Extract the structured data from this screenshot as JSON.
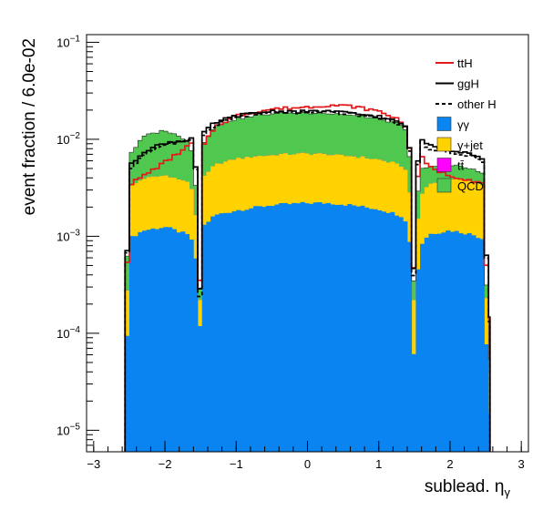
{
  "chart_data": {
    "type": "area",
    "stacked": true,
    "log_y": true,
    "xlabel": "sublead. η",
    "xlabel_sub": "γ",
    "ylabel": "event fraction / 6.0e-02",
    "xlim": [
      -3.1,
      3.1
    ],
    "ylim": [
      6e-06,
      0.12
    ],
    "x_ticks": [
      -3,
      -2,
      -1,
      0,
      1,
      2,
      3
    ],
    "x_tick_labels": [
      "−3",
      "−2",
      "−1",
      "0",
      "1",
      "2",
      "3"
    ],
    "y_ticks": [
      1e-05,
      0.0001,
      0.001,
      0.01,
      0.1
    ],
    "y_tick_labels": [
      {
        "base": "10",
        "exp": "−5"
      },
      {
        "base": "10",
        "exp": "−4"
      },
      {
        "base": "10",
        "exp": "−3"
      },
      {
        "base": "10",
        "exp": "−2"
      },
      {
        "base": "10",
        "exp": "−1"
      }
    ],
    "bin_width": 0.06,
    "profile_x": [
      -2.56,
      -2.5,
      -2.3,
      -2.0,
      -1.7,
      -1.58,
      -1.52,
      -1.45,
      -1.3,
      -1.0,
      -0.5,
      0.0,
      0.3,
      0.6,
      1.0,
      1.3,
      1.42,
      1.5,
      1.56,
      1.7,
      2.0,
      2.3,
      2.45,
      2.56
    ],
    "stacked_series": [
      {
        "name": "γγ",
        "color": "#0a84f0",
        "values": [
          1e-05,
          0.00095,
          0.00115,
          0.00125,
          0.00105,
          0.00085,
          8e-05,
          0.0013,
          0.00165,
          0.00185,
          0.0021,
          0.0022,
          0.0022,
          0.0021,
          0.0019,
          0.00165,
          0.00135,
          4e-05,
          0.00075,
          0.00105,
          0.00115,
          0.00105,
          0.00095,
          1e-05
        ]
      },
      {
        "name": "γ+jet",
        "color": "#ffd200",
        "values": [
          1.5e-05,
          0.0023,
          0.0028,
          0.003,
          0.0026,
          0.0019,
          6e-05,
          0.0028,
          0.0038,
          0.0045,
          0.0048,
          0.0049,
          0.0048,
          0.0046,
          0.0043,
          0.0038,
          0.0031,
          0.0001,
          0.0017,
          0.0024,
          0.0028,
          0.0027,
          0.0024,
          1.5e-05
        ]
      },
      {
        "name": "tt̄",
        "color": "#ff00ff",
        "values": [
          1e-07,
          1e-06,
          1.5e-06,
          2e-06,
          1.5e-06,
          1e-06,
          1e-07,
          2e-06,
          3e-06,
          3.5e-06,
          4e-06,
          4e-06,
          4e-06,
          3.5e-06,
          3e-06,
          2e-06,
          1.5e-06,
          1e-07,
          1e-06,
          1.5e-06,
          2e-06,
          1.5e-06,
          1e-06,
          1e-07
        ]
      },
      {
        "name": "QCD",
        "color": "#50c850",
        "values": [
          3.5e-05,
          0.0036,
          0.0068,
          0.0082,
          0.0062,
          0.0038,
          3e-05,
          0.0052,
          0.0082,
          0.01,
          0.0115,
          0.0118,
          0.0115,
          0.011,
          0.0102,
          0.0088,
          0.0068,
          7e-05,
          0.0025,
          0.0018,
          0.0015,
          0.0013,
          0.0011,
          1e-05
        ]
      }
    ],
    "line_series": [
      {
        "name": "ttH",
        "color": "#e31a1c",
        "dash": "",
        "values": [
          9e-05,
          0.0034,
          0.0042,
          0.0058,
          0.0082,
          0.0098,
          0.0002,
          0.0088,
          0.0135,
          0.0175,
          0.0205,
          0.0215,
          0.0225,
          0.022,
          0.0195,
          0.0158,
          0.0125,
          0.0003,
          0.0072,
          0.0052,
          0.0042,
          0.0038,
          0.0035,
          0.0001
        ]
      },
      {
        "name": "ggH",
        "color": "#000000",
        "dash": "",
        "values": [
          0.0001,
          0.0052,
          0.0075,
          0.0092,
          0.0098,
          0.0105,
          0.00015,
          0.0118,
          0.0148,
          0.0175,
          0.0195,
          0.0192,
          0.0195,
          0.0185,
          0.0172,
          0.0148,
          0.0128,
          0.0003,
          0.0105,
          0.0088,
          0.0078,
          0.0072,
          0.0062,
          0.0001
        ]
      },
      {
        "name": "other H",
        "color": "#000000",
        "dash": "4,3",
        "values": [
          9e-05,
          0.0048,
          0.007,
          0.0088,
          0.0095,
          0.0102,
          0.00013,
          0.0112,
          0.0142,
          0.017,
          0.019,
          0.0188,
          0.0192,
          0.0182,
          0.0168,
          0.0142,
          0.0122,
          0.00025,
          0.0098,
          0.0082,
          0.0072,
          0.0068,
          0.0058,
          9e-05
        ]
      }
    ],
    "legend_placement": "top-right",
    "legend": [
      {
        "label": "ttH",
        "kind": "line",
        "color": "#e31a1c",
        "dash": ""
      },
      {
        "label": "ggH",
        "kind": "line",
        "color": "#000000",
        "dash": ""
      },
      {
        "label": "other H",
        "kind": "line",
        "color": "#000000",
        "dash": "4,3"
      },
      {
        "label": "γγ",
        "kind": "box",
        "color": "#0a84f0"
      },
      {
        "label": "γ+jet",
        "kind": "box",
        "color": "#ffd200"
      },
      {
        "label": "tt̄",
        "kind": "box",
        "color": "#ff00ff"
      },
      {
        "label": "QCD",
        "kind": "box",
        "color": "#50c850"
      }
    ],
    "grid": false
  }
}
